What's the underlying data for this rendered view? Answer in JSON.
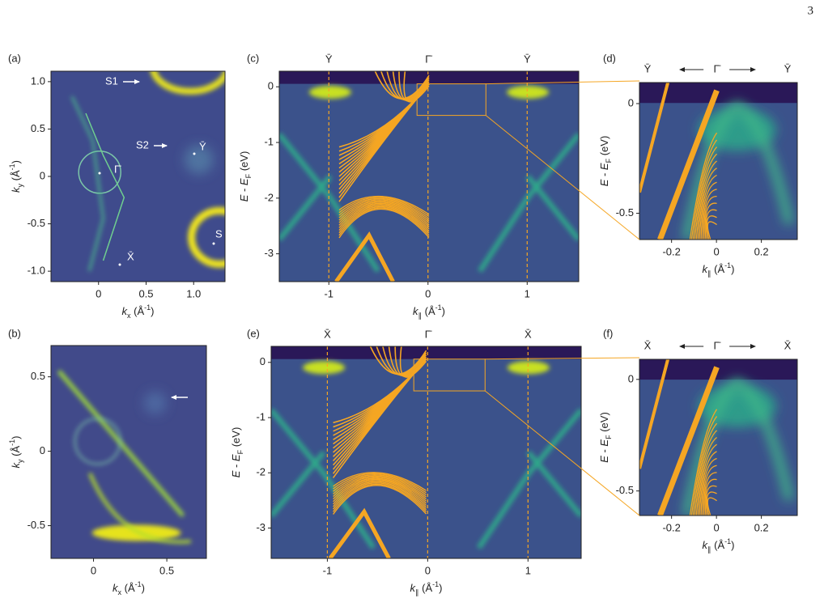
{
  "page_number": "3",
  "panels": [
    {
      "label": "(a)",
      "xlabel": [
        "k",
        "x",
        " (Å",
        "-1",
        ")"
      ],
      "ylabel": [
        "k",
        "y",
        " (Å",
        "-1",
        ")"
      ],
      "xlim": [
        -0.5,
        1.33
      ],
      "ylim": [
        -1.11,
        1.11
      ],
      "xticks": [
        0,
        0.5,
        {
          "value": 1,
          "label": "1.0"
        }
      ],
      "yticks": [
        {
          "value": 1,
          "label": "1.0"
        },
        0.5,
        0,
        -0.5,
        {
          "value": -1,
          "label": "-1.0"
        }
      ],
      "annotations": [
        "S1",
        "S2",
        "Ȳ",
        "Γ̄",
        "X̄",
        "S"
      ]
    },
    {
      "label": "(b)",
      "xlabel": [
        "k",
        "x",
        " (Å",
        "-1",
        ")"
      ],
      "ylabel": [
        "k",
        "y",
        " (Å",
        "-1",
        ")"
      ],
      "xlim": [
        -0.29,
        0.77
      ],
      "ylim": [
        -0.72,
        0.71
      ],
      "xticks": [
        0,
        0.5
      ],
      "yticks": [
        0.5,
        0,
        -0.5
      ]
    },
    {
      "label": "(c)",
      "xlabel": [
        "k",
        "∥",
        " (Å",
        "-1",
        ")"
      ],
      "ylabel": [
        "E",
        " - ",
        "E",
        "F",
        " (eV)"
      ],
      "xlim": [
        -1.5,
        1.52
      ],
      "ylim": [
        -3.5,
        0.28
      ],
      "xticks": [
        -1,
        0,
        1
      ],
      "yticks": [
        0,
        -1,
        -2,
        -3
      ],
      "symmetry_points": [
        {
          "value": -1,
          "label": "Ȳ"
        },
        {
          "value": 0,
          "label": "Γ̄"
        },
        {
          "value": 1,
          "label": "Ȳ"
        }
      ]
    },
    {
      "label": "(d)",
      "xlabel": [
        "k",
        "∥",
        " (Å",
        "-1",
        ")"
      ],
      "ylabel": [
        "E",
        " - ",
        "E",
        "F",
        " (eV)"
      ],
      "xlim": [
        -0.343,
        0.36
      ],
      "ylim": [
        -0.62,
        0.096
      ],
      "xticks": [
        -0.2,
        0,
        0.2
      ],
      "yticks": [
        0,
        -0.5
      ],
      "header_labels": [
        "Ȳ",
        "Γ̄",
        "Ȳ"
      ]
    },
    {
      "label": "(e)",
      "xlabel": [
        "k",
        "∥",
        " (Å",
        "-1",
        ")"
      ],
      "ylabel": [
        "E",
        " - ",
        "E",
        "F",
        " (eV)"
      ],
      "xlim": [
        -1.56,
        1.53
      ],
      "ylim": [
        -3.55,
        0.29
      ],
      "xticks": [
        -1,
        0,
        1
      ],
      "yticks": [
        0,
        -1,
        -2,
        -3
      ],
      "symmetry_points": [
        {
          "value": -1,
          "label": "X̄"
        },
        {
          "value": 0,
          "label": "Γ̄"
        },
        {
          "value": 1,
          "label": "X̄"
        }
      ]
    },
    {
      "label": "(f)",
      "xlabel": [
        "k",
        "∥",
        " (Å",
        "-1",
        ")"
      ],
      "ylabel": [
        "E",
        " - ",
        "E",
        "F",
        " (eV)"
      ],
      "xlim": [
        -0.343,
        0.36
      ],
      "ylim": [
        -0.61,
        0.09
      ],
      "xticks": [
        -0.2,
        0,
        0.2
      ],
      "yticks": [
        0,
        -0.5
      ],
      "header_labels": [
        "X̄",
        "Γ̄",
        "X̄"
      ]
    }
  ]
}
